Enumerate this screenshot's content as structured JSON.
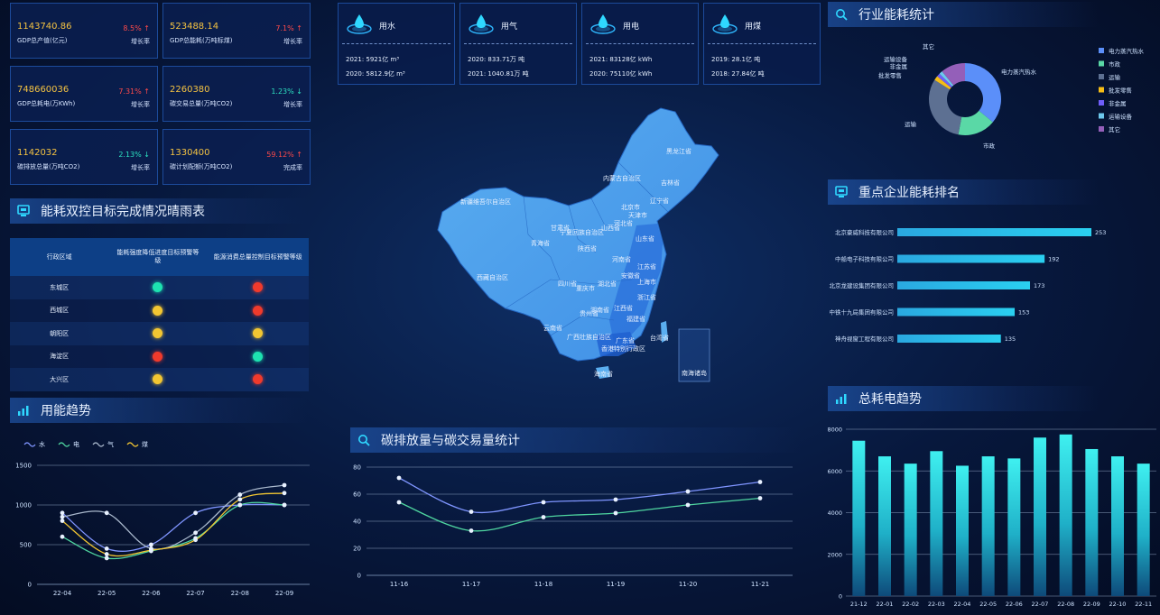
{
  "kpis": [
    {
      "value": "1143740.86",
      "label": "GDP总产值(亿元)",
      "pct": "8.5% ↑",
      "sub": "增长率",
      "dir": "up"
    },
    {
      "value": "523488.14",
      "label": "GDP总能耗(万吨标煤)",
      "pct": "7.1% ↑",
      "sub": "增长率",
      "dir": "up"
    },
    {
      "value": "748660036",
      "label": "GDP总耗电(万KWh)",
      "pct": "7.31% ↑",
      "sub": "增长率",
      "dir": "up"
    },
    {
      "value": "2260380",
      "label": "碳交易总量(万吨CO2)",
      "pct": "1.23% ↓",
      "sub": "增长率",
      "dir": "down"
    },
    {
      "value": "1142032",
      "label": "碳排放总量(万吨CO2)",
      "pct": "2.13% ↓",
      "sub": "增长率",
      "dir": "down"
    },
    {
      "value": "1330400",
      "label": "碳计划配额(万吨CO2)",
      "pct": "59.12% ↑",
      "sub": "完成率",
      "dir": "up"
    }
  ],
  "dual_control": {
    "title": "能耗双控目标完成情况晴雨表",
    "headers": [
      "行政区域",
      "能耗强度降低进度目标预警等级",
      "能源消费总量控制目标预警等级"
    ],
    "rows": [
      {
        "area": "东城区",
        "a": "#1de2b0",
        "b": "#f03a2c"
      },
      {
        "area": "西城区",
        "a": "#f2c632",
        "b": "#f03a2c"
      },
      {
        "area": "朝阳区",
        "a": "#f2c632",
        "b": "#f2c632"
      },
      {
        "area": "海淀区",
        "a": "#f03a2c",
        "b": "#1de2b0"
      },
      {
        "area": "大兴区",
        "a": "#f2c632",
        "b": "#f03a2c"
      }
    ]
  },
  "resources": [
    {
      "name": "用水",
      "l1": "2021: 5921亿 m³",
      "l2": "2020: 5812.9亿 m³"
    },
    {
      "name": "用气",
      "l1": "2020: 833.71万 吨",
      "l2": "2021: 1040.81万 吨"
    },
    {
      "name": "用电",
      "l1": "2021: 83128亿 kWh",
      "l2": "2020: 75110亿 kWh"
    },
    {
      "name": "用煤",
      "l1": "2019: 28.1亿 吨",
      "l2": "2018: 27.84亿 吨"
    }
  ],
  "map": {
    "provinces": [
      {
        "name": "黑龙江省"
      },
      {
        "name": "吉林省"
      },
      {
        "name": "辽宁省"
      },
      {
        "name": "内蒙古自治区"
      },
      {
        "name": "北京市"
      },
      {
        "name": "天津市"
      },
      {
        "name": "河北省"
      },
      {
        "name": "山西省"
      },
      {
        "name": "山东省"
      },
      {
        "name": "新疆维吾尔自治区"
      },
      {
        "name": "甘肃省"
      },
      {
        "name": "宁夏回族自治区"
      },
      {
        "name": "青海省"
      },
      {
        "name": "陕西省"
      },
      {
        "name": "河南省"
      },
      {
        "name": "江苏省"
      },
      {
        "name": "安徽省"
      },
      {
        "name": "上海市"
      },
      {
        "name": "西藏自治区"
      },
      {
        "name": "四川省"
      },
      {
        "name": "重庆市"
      },
      {
        "name": "湖北省"
      },
      {
        "name": "浙江省"
      },
      {
        "name": "湖南省"
      },
      {
        "name": "江西省"
      },
      {
        "name": "贵州省"
      },
      {
        "name": "福建省"
      },
      {
        "name": "云南省"
      },
      {
        "name": "广西壮族自治区"
      },
      {
        "name": "广东省"
      },
      {
        "name": "台湾省"
      },
      {
        "name": "香港特别行政区"
      },
      {
        "name": "海南省"
      },
      {
        "name": "南海诸岛"
      }
    ]
  },
  "titles": {
    "industry": "行业能耗统计",
    "ranking": "重点企业能耗排名",
    "power_trend": "总耗电趋势",
    "usage_trend": "用能趋势",
    "carbon": "碳排放量与碳交易量统计"
  },
  "chart_data": [
    {
      "id": "usage_trend",
      "type": "line",
      "title": "用能趋势",
      "x": [
        "22-04",
        "22-05",
        "22-06",
        "22-07",
        "22-08",
        "22-09"
      ],
      "ylim": [
        0,
        1500
      ],
      "yticks": [
        0,
        500,
        1000,
        1500
      ],
      "series": [
        {
          "name": "水",
          "color": "#7f95ff",
          "values": [
            900,
            450,
            500,
            900,
            1000,
            1000
          ]
        },
        {
          "name": "电",
          "color": "#4fd6a0",
          "values": [
            600,
            330,
            420,
            580,
            1000,
            1000
          ]
        },
        {
          "name": "气",
          "color": "#a9b8cc",
          "values": [
            850,
            900,
            450,
            650,
            1130,
            1250
          ]
        },
        {
          "name": "煤",
          "color": "#f2c632",
          "values": [
            800,
            380,
            430,
            560,
            1070,
            1150
          ]
        }
      ]
    },
    {
      "id": "carbon",
      "type": "line",
      "title": "碳排放量与碳交易量统计",
      "x": [
        "11-16",
        "11-17",
        "11-18",
        "11-19",
        "11-20",
        "11-21"
      ],
      "ylim": [
        0,
        80
      ],
      "yticks": [
        0,
        20,
        40,
        60,
        80
      ],
      "series": [
        {
          "name": "碳排放量",
          "color": "#7f95ff",
          "values": [
            72,
            47,
            54,
            56,
            62,
            69
          ]
        },
        {
          "name": "碳交易量",
          "color": "#4fd6a0",
          "values": [
            54,
            33,
            43,
            46,
            52,
            57
          ]
        }
      ]
    },
    {
      "id": "industry",
      "type": "pie",
      "title": "行业能耗统计",
      "slices": [
        {
          "name": "电力蒸汽热水",
          "value": 36,
          "color": "#5b8ff9"
        },
        {
          "name": "市政",
          "value": 17,
          "color": "#5ad8a6"
        },
        {
          "name": "运输",
          "value": 31,
          "color": "#5d7092"
        },
        {
          "name": "批发零售",
          "value": 2,
          "color": "#f6bd16"
        },
        {
          "name": "非金属",
          "value": 1.5,
          "color": "#6f5ef9"
        },
        {
          "name": "运输设备",
          "value": 1.5,
          "color": "#6dc8ec"
        },
        {
          "name": "其它",
          "value": 11,
          "color": "#945fb9"
        }
      ]
    },
    {
      "id": "ranking",
      "type": "bar",
      "title": "重点企业能耗排名",
      "categories": [
        "北京豪威科技有限公司",
        "中船电子科技有限公司",
        "北京龙建设集团有限公司",
        "中铁十九局集团有限公司",
        "神舟视窗工程有限公司"
      ],
      "values": [
        253,
        192,
        173,
        153,
        135
      ],
      "xlim": [
        0,
        253
      ]
    },
    {
      "id": "power_trend",
      "type": "bar",
      "title": "总耗电趋势",
      "categories": [
        "21-12",
        "22-01",
        "22-02",
        "22-03",
        "22-04",
        "22-05",
        "22-06",
        "22-07",
        "22-08",
        "22-09",
        "22-10",
        "22-11"
      ],
      "values": [
        7450,
        6700,
        6350,
        6950,
        6250,
        6700,
        6600,
        7600,
        7750,
        7050,
        6700,
        6350
      ],
      "ylim": [
        0,
        8000
      ],
      "yticks": [
        0,
        2000,
        4000,
        6000,
        8000
      ]
    }
  ]
}
